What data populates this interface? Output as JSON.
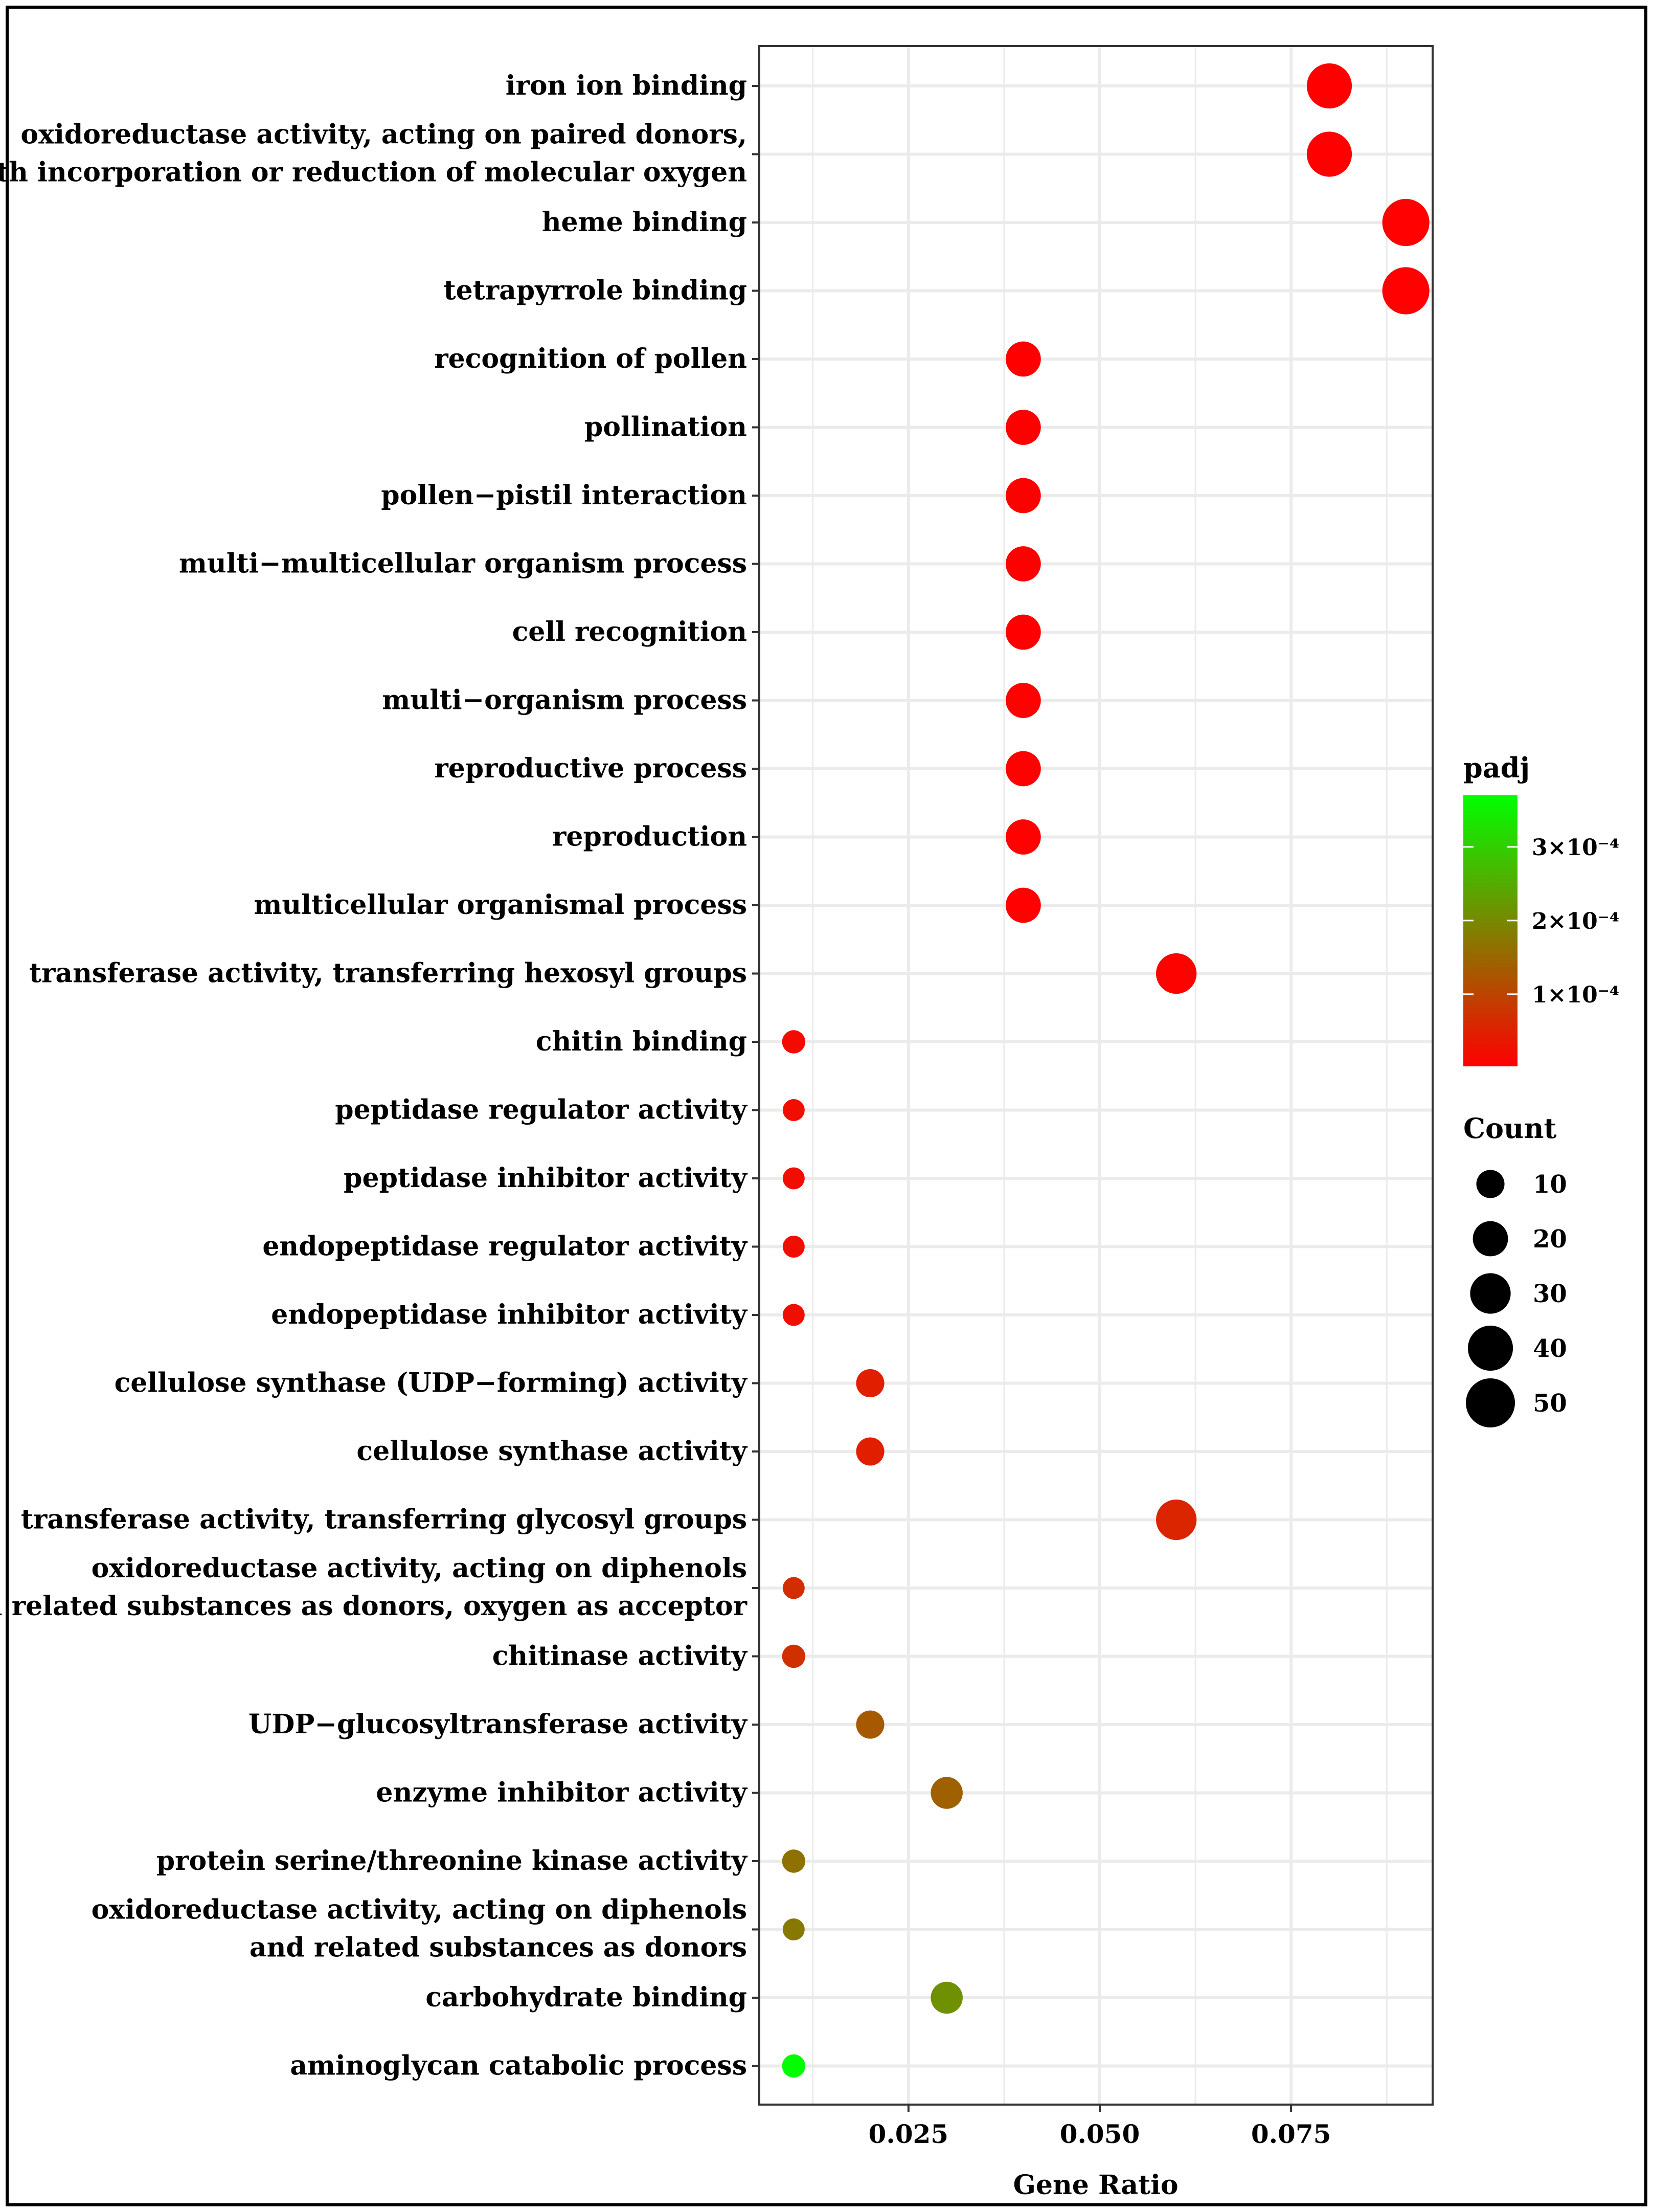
{
  "chart_data": {
    "type": "scatter",
    "title": "",
    "xlabel": "Gene Ratio",
    "ylabel": "",
    "xlim": [
      0.0055,
      0.0935
    ],
    "xticks": [
      0.025,
      0.05,
      0.075
    ],
    "xtick_labels": [
      "0.025",
      "0.050",
      "0.075"
    ],
    "grid": true,
    "categories": [
      {
        "label": [
          "iron ion binding"
        ],
        "gene_ratio": 0.08,
        "count": 40,
        "padj": 2e-06
      },
      {
        "label": [
          "oxidoreductase activity, acting on paired donors,",
          "with incorporation or reduction of molecular oxygen"
        ],
        "gene_ratio": 0.08,
        "count": 40,
        "padj": 2e-06
      },
      {
        "label": [
          "heme binding"
        ],
        "gene_ratio": 0.09,
        "count": 45,
        "padj": 3e-06
      },
      {
        "label": [
          "tetrapyrrole binding"
        ],
        "gene_ratio": 0.09,
        "count": 45,
        "padj": 3e-06
      },
      {
        "label": [
          "recognition of pollen"
        ],
        "gene_ratio": 0.04,
        "count": 20,
        "padj": 2e-06
      },
      {
        "label": [
          "pollination"
        ],
        "gene_ratio": 0.04,
        "count": 20,
        "padj": 2e-06
      },
      {
        "label": [
          "pollen−pistil interaction"
        ],
        "gene_ratio": 0.04,
        "count": 20,
        "padj": 2e-06
      },
      {
        "label": [
          "multi−multicellular organism process"
        ],
        "gene_ratio": 0.04,
        "count": 20,
        "padj": 2e-06
      },
      {
        "label": [
          "cell recognition"
        ],
        "gene_ratio": 0.04,
        "count": 20,
        "padj": 2e-06
      },
      {
        "label": [
          "multi−organism process"
        ],
        "gene_ratio": 0.04,
        "count": 20,
        "padj": 3e-06
      },
      {
        "label": [
          "reproductive process"
        ],
        "gene_ratio": 0.04,
        "count": 20,
        "padj": 3e-06
      },
      {
        "label": [
          "reproduction"
        ],
        "gene_ratio": 0.04,
        "count": 20,
        "padj": 3e-06
      },
      {
        "label": [
          "multicellular organismal process"
        ],
        "gene_ratio": 0.04,
        "count": 20,
        "padj": 3e-06
      },
      {
        "label": [
          "transferase activity, transferring hexosyl groups"
        ],
        "gene_ratio": 0.06,
        "count": 30,
        "padj": 6e-06
      },
      {
        "label": [
          "chitin binding"
        ],
        "gene_ratio": 0.01,
        "count": 5,
        "padj": 1.8e-05
      },
      {
        "label": [
          "peptidase regulator activity"
        ],
        "gene_ratio": 0.01,
        "count": 4,
        "padj": 2.2e-05
      },
      {
        "label": [
          "peptidase inhibitor activity"
        ],
        "gene_ratio": 0.01,
        "count": 4,
        "padj": 2.2e-05
      },
      {
        "label": [
          "endopeptidase regulator activity"
        ],
        "gene_ratio": 0.01,
        "count": 4,
        "padj": 2.2e-05
      },
      {
        "label": [
          "endopeptidase inhibitor activity"
        ],
        "gene_ratio": 0.01,
        "count": 4,
        "padj": 2.2e-05
      },
      {
        "label": [
          "cellulose synthase (UDP−forming) activity"
        ],
        "gene_ratio": 0.02,
        "count": 10,
        "padj": 4.5e-05
      },
      {
        "label": [
          "cellulose synthase activity"
        ],
        "gene_ratio": 0.02,
        "count": 10,
        "padj": 4.5e-05
      },
      {
        "label": [
          "transferase activity, transferring glycosyl groups"
        ],
        "gene_ratio": 0.06,
        "count": 30,
        "padj": 5.5e-05
      },
      {
        "label": [
          "oxidoreductase activity, acting on diphenols",
          "and related substances as donors, oxygen as acceptor"
        ],
        "gene_ratio": 0.01,
        "count": 4,
        "padj": 6.5e-05
      },
      {
        "label": [
          "chitinase activity"
        ],
        "gene_ratio": 0.01,
        "count": 5,
        "padj": 7e-05
      },
      {
        "label": [
          "UDP−glucosyltransferase activity"
        ],
        "gene_ratio": 0.02,
        "count": 10,
        "padj": 0.00013
      },
      {
        "label": [
          "enzyme inhibitor activity"
        ],
        "gene_ratio": 0.03,
        "count": 15,
        "padj": 0.00014
      },
      {
        "label": [
          "protein serine/threonine kinase activity"
        ],
        "gene_ratio": 0.01,
        "count": 5,
        "padj": 0.000165
      },
      {
        "label": [
          "oxidoreductase activity, acting on diphenols",
          "and related substances as donors"
        ],
        "gene_ratio": 0.01,
        "count": 4,
        "padj": 0.000175
      },
      {
        "label": [
          "carbohydrate binding"
        ],
        "gene_ratio": 0.03,
        "count": 15,
        "padj": 0.00021
      },
      {
        "label": [
          "aminoglycan catabolic process"
        ],
        "gene_ratio": 0.01,
        "count": 5,
        "padj": 0.000365
      }
    ],
    "color_legend": {
      "title": "padj",
      "min": 2e-06,
      "max": 0.00037,
      "ticks": [
        0.0001,
        0.0002,
        0.0003
      ],
      "tick_labels": [
        "1×10⁻⁴",
        "2×10⁻⁴",
        "3×10⁻⁴"
      ],
      "low_color": "#ff0000",
      "high_color": "#00ff00"
    },
    "size_legend": {
      "title": "Count",
      "values": [
        10,
        20,
        30,
        40,
        50
      ],
      "labels": [
        "10",
        "20",
        "30",
        "40",
        "50"
      ]
    }
  }
}
